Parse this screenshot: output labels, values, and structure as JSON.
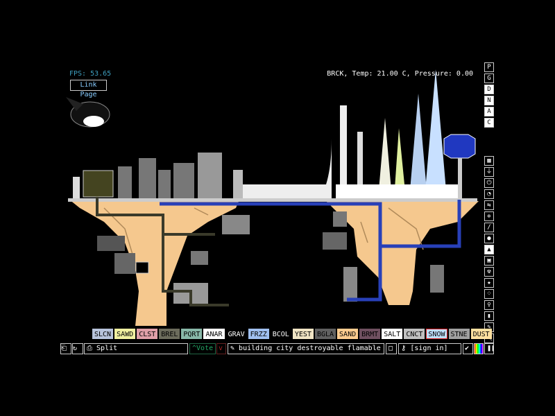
{
  "hud": {
    "fps": "FPS: 53.65",
    "link_page": "Link Page",
    "status": "BRCK, Temp: 21.00 C, Pressure: 0.00"
  },
  "render_modes": [
    "P",
    "G",
    "D",
    "N",
    "A",
    "C"
  ],
  "render_selected": [
    "D",
    "N",
    "A",
    "C"
  ],
  "categories": [
    {
      "icon": "walls-icon",
      "glyph": "▦"
    },
    {
      "icon": "electronics-icon",
      "glyph": "⏚"
    },
    {
      "icon": "power-icon",
      "glyph": "⏻"
    },
    {
      "icon": "sensors-icon",
      "glyph": "◔"
    },
    {
      "icon": "force-icon",
      "glyph": "⇆"
    },
    {
      "icon": "explosives-icon",
      "glyph": "✲"
    },
    {
      "icon": "solids-icon",
      "glyph": "/"
    },
    {
      "icon": "liquids-icon",
      "glyph": "●"
    },
    {
      "icon": "powders-icon",
      "glyph": "▲"
    },
    {
      "icon": "gases-icon",
      "glyph": "▣"
    },
    {
      "icon": "radioactive-icon",
      "glyph": "☢"
    },
    {
      "icon": "special-icon",
      "glyph": "★"
    },
    {
      "icon": "life-icon",
      "glyph": "⁘"
    },
    {
      "icon": "tools-icon",
      "glyph": "♀"
    },
    {
      "icon": "favorites-icon",
      "glyph": "▮"
    },
    {
      "icon": "decoration-icon",
      "glyph": "✎"
    },
    {
      "icon": "search-icon",
      "glyph": "🔍"
    }
  ],
  "selected_category": "powders-icon",
  "elements": [
    {
      "name": "SLCN",
      "bg": "#b8c4dc",
      "fg": "#000"
    },
    {
      "name": "SAWD",
      "bg": "#f0f0a0",
      "fg": "#000"
    },
    {
      "name": "CLST",
      "bg": "#e0a0a8",
      "fg": "#000"
    },
    {
      "name": "BREL",
      "bg": "#6c6c5c",
      "fg": "#000"
    },
    {
      "name": "PQRT",
      "bg": "#88b8a8",
      "fg": "#000"
    },
    {
      "name": "ANAR",
      "bg": "#ffffff",
      "fg": "#000"
    },
    {
      "name": "GRAV",
      "bg": "#000000",
      "fg": "#fff"
    },
    {
      "name": "FRZZ",
      "bg": "#a0c0f0",
      "fg": "#000"
    },
    {
      "name": "BCOL",
      "bg": "#000000",
      "fg": "#fff"
    },
    {
      "name": "YEST",
      "bg": "#f0e4c4",
      "fg": "#000"
    },
    {
      "name": "BGLA",
      "bg": "#606060",
      "fg": "#000"
    },
    {
      "name": "SAND",
      "bg": "#ffcc90",
      "fg": "#000"
    },
    {
      "name": "BRMT",
      "bg": "#705060",
      "fg": "#000"
    },
    {
      "name": "SALT",
      "bg": "#ffffff",
      "fg": "#000"
    },
    {
      "name": "CNCT",
      "bg": "#c0c0c0",
      "fg": "#000"
    },
    {
      "name": "SNOW",
      "bg": "#c0e0ff",
      "fg": "#000",
      "selected": true
    },
    {
      "name": "STNE",
      "bg": "#a0a0a0",
      "fg": "#000"
    },
    {
      "name": "DUST",
      "bg": "#ffe0a0",
      "fg": "#000"
    }
  ],
  "bottom": {
    "save_name": "Split",
    "vote": "Vote",
    "tags": "building city destroyable flamable pipe ...",
    "sign_in": "[sign in]"
  }
}
